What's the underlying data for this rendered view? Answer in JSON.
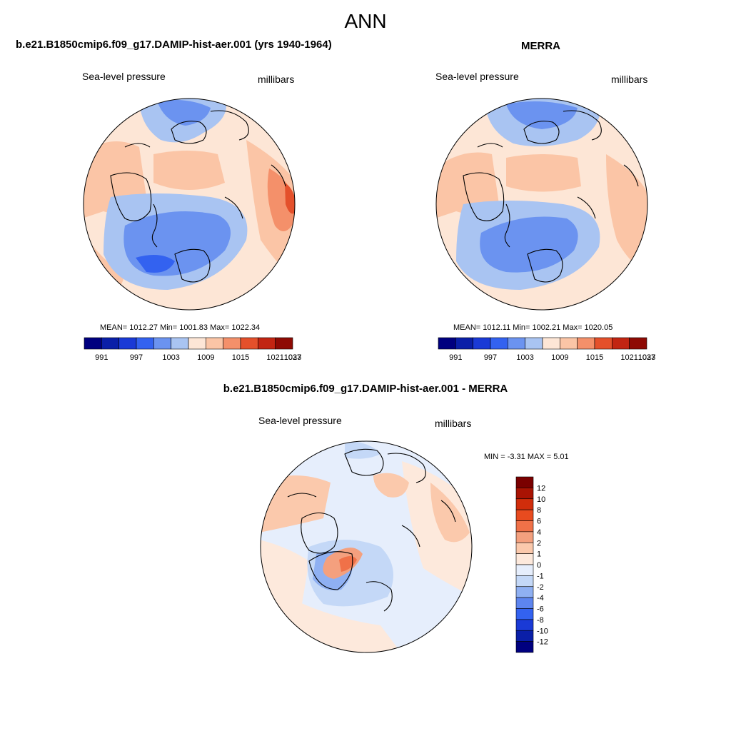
{
  "page": {
    "title": "ANN"
  },
  "colors": {
    "palette_12": [
      "#00007f",
      "#0a1fa8",
      "#1a3ad6",
      "#3362f0",
      "#6b93f0",
      "#a9c4f2",
      "#fde6d6",
      "#fbc5a6",
      "#f4906a",
      "#e4502b",
      "#c22512",
      "#8e0a04"
    ],
    "diff_palette": [
      "#00007f",
      "#0a1fa8",
      "#1a3ad6",
      "#3362f0",
      "#5d85ef",
      "#8fb0f2",
      "#c4d8f7",
      "#e6eefc",
      "#fde9dc",
      "#fbc9ac",
      "#f4a07e",
      "#f07148",
      "#e84b1f",
      "#d12d0b",
      "#a91303",
      "#7a0000"
    ]
  },
  "panels": {
    "left": {
      "title": "b.e21.B1850cmip6.f09_g17.DAMIP-hist-aer.001 (yrs 1940-1964)",
      "variable": "Sea-level pressure",
      "units": "millibars",
      "stats": "MEAN= 1012.27  Min= 1001.83  Max= 1022.34"
    },
    "right": {
      "title": "MERRA",
      "variable": "Sea-level pressure",
      "units": "millibars",
      "stats": "MEAN= 1012.11  Min= 1002.21  Max= 1020.05"
    },
    "diff": {
      "title": "b.e21.B1850cmip6.f09_g17.DAMIP-hist-aer.001 - MERRA",
      "variable": "Sea-level pressure",
      "units": "millibars",
      "stats": "MIN =  -3.31 MAX =   5.01"
    }
  },
  "colorbars": {
    "horizontal_labels": [
      "991",
      "997",
      "1003",
      "1009",
      "1015",
      "1021",
      "1027",
      "1033"
    ],
    "vertical_labels": [
      "12",
      "10",
      "8",
      "6",
      "4",
      "2",
      "1",
      "0",
      "-1",
      "-2",
      "-4",
      "-6",
      "-8",
      "-10",
      "-12"
    ]
  }
}
